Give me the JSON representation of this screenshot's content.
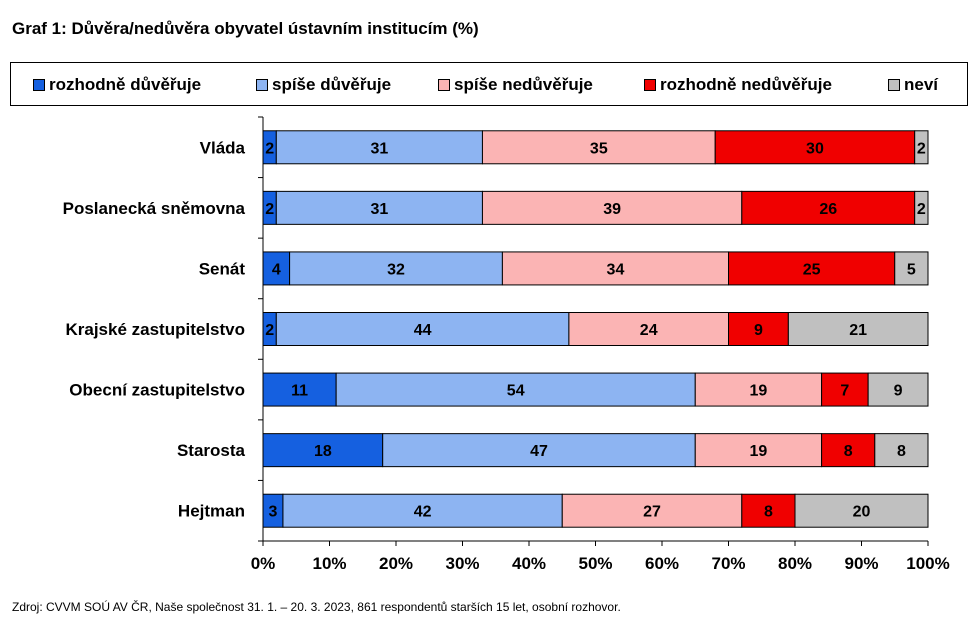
{
  "title": "Graf 1: Důvěra/nedůvěra obyvatel ústavním institucím (%)",
  "source": "Zdroj: CVVM SOÚ AV ČR, Naše společnost 31. 1. – 20. 3. 2023, 861 respondentů starších 15 let, osobní rozhovor.",
  "chart_data": {
    "type": "bar",
    "orientation": "horizontal",
    "stacked": "percent",
    "title": "Graf 1: Důvěra/nedůvěra obyvatel ústavním institucím (%)",
    "categories": [
      "Vláda",
      "Poslanecká sněmovna",
      "Senát",
      "Krajské zastupitelstvo",
      "Obecní zastupitelstvo",
      "Starosta",
      "Hejtman"
    ],
    "series": [
      {
        "name": "rozhodně důvěřuje",
        "color": "#1560e0",
        "values": [
          2,
          2,
          4,
          2,
          11,
          18,
          3
        ]
      },
      {
        "name": "spíše důvěřuje",
        "color": "#8db4f2",
        "values": [
          31,
          31,
          32,
          44,
          54,
          47,
          42
        ]
      },
      {
        "name": "spíše nedůvěřuje",
        "color": "#fbb4b4",
        "values": [
          35,
          39,
          34,
          24,
          19,
          19,
          27
        ]
      },
      {
        "name": "rozhodně nedůvěřuje",
        "color": "#f00000",
        "values": [
          30,
          26,
          25,
          9,
          7,
          8,
          8
        ]
      },
      {
        "name": "neví",
        "color": "#c0c0c0",
        "values": [
          2,
          2,
          5,
          21,
          9,
          8,
          20
        ]
      }
    ],
    "xlim": [
      0,
      100
    ],
    "x_ticks": [
      "0%",
      "10%",
      "20%",
      "30%",
      "40%",
      "50%",
      "60%",
      "70%",
      "80%",
      "90%",
      "100%"
    ],
    "grid": false,
    "legend_position": "top"
  }
}
